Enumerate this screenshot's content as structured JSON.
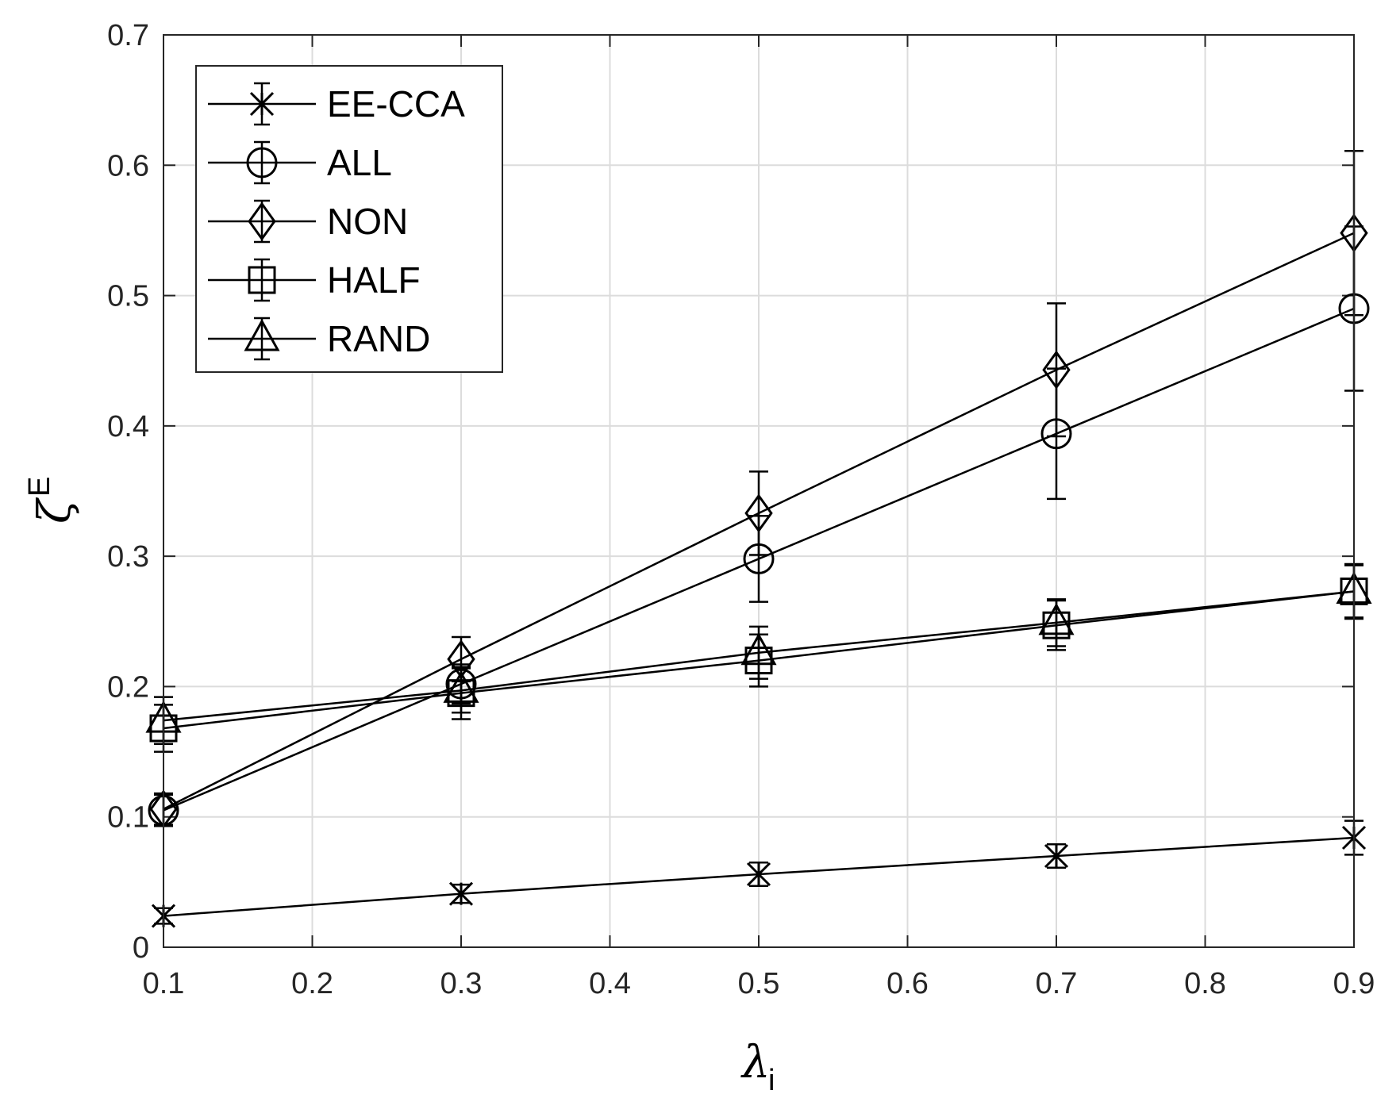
{
  "chart_data": {
    "type": "line",
    "x": [
      0.1,
      0.3,
      0.5,
      0.7,
      0.9
    ],
    "xlim": [
      0.1,
      0.9
    ],
    "ylim": [
      0,
      0.7
    ],
    "xticks": [
      "0.1",
      "0.2",
      "0.3",
      "0.4",
      "0.5",
      "0.6",
      "0.7",
      "0.8",
      "0.9"
    ],
    "yticks": [
      "0",
      "0.1",
      "0.2",
      "0.3",
      "0.4",
      "0.5",
      "0.6",
      "0.7"
    ],
    "grid": true,
    "legend_position": "top-left",
    "xlabel": {
      "symbol": "λ",
      "subscript": "i"
    },
    "ylabel": {
      "symbol": "ζ",
      "superscript": "E"
    },
    "series": [
      {
        "name": "EE-CCA",
        "marker": "asterisk",
        "values": [
          0.024,
          0.041,
          0.056,
          0.07,
          0.084
        ],
        "errors": [
          0.006,
          0.007,
          0.009,
          0.009,
          0.013
        ]
      },
      {
        "name": "ALL",
        "marker": "circle",
        "values": [
          0.105,
          0.202,
          0.298,
          0.394,
          0.49
        ],
        "errors": [
          0.012,
          0.015,
          0.033,
          0.05,
          0.063
        ]
      },
      {
        "name": "NON",
        "marker": "diamond",
        "values": [
          0.106,
          0.221,
          0.333,
          0.443,
          0.548
        ],
        "errors": [
          0.012,
          0.017,
          0.032,
          0.051,
          0.063
        ]
      },
      {
        "name": "HALF",
        "marker": "square",
        "values": [
          0.168,
          0.195,
          0.22,
          0.247,
          0.273
        ],
        "errors": [
          0.018,
          0.02,
          0.02,
          0.019,
          0.02
        ]
      },
      {
        "name": "RAND",
        "marker": "triangle",
        "values": [
          0.174,
          0.197,
          0.226,
          0.249,
          0.273
        ],
        "errors": [
          0.018,
          0.017,
          0.02,
          0.018,
          0.021
        ]
      }
    ]
  }
}
